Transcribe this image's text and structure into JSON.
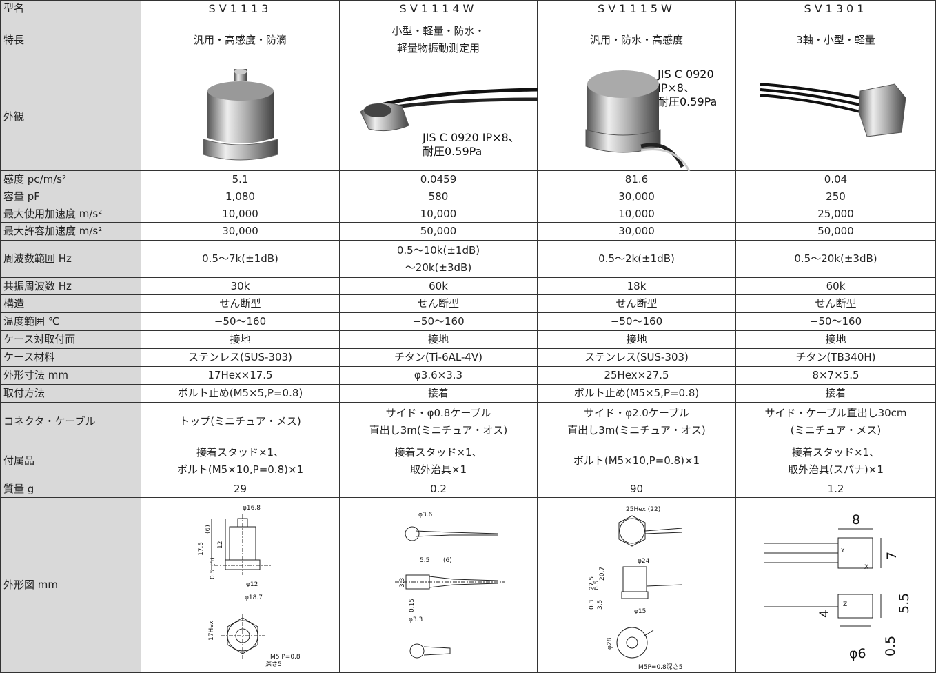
{
  "table": {
    "header": {
      "label": "型名",
      "models": [
        "SV1113",
        "SV1114W",
        "SV1115W",
        "SV1301"
      ]
    },
    "rows": [
      {
        "label": "特長",
        "cells": [
          [
            "汎用・高感度・防滴"
          ],
          [
            "小型・軽量・防水・",
            "軽量物振動測定用"
          ],
          [
            "汎用・防水・高感度"
          ],
          [
            "3軸・小型・軽量"
          ]
        ]
      },
      {
        "label": "外観",
        "notes": [
          [],
          [
            "JIS C 0920 IP×8、",
            "耐圧0.59Pa"
          ],
          [
            "JIS C 0920",
            "IP×8、",
            "耐圧0.59Pa"
          ],
          []
        ]
      },
      {
        "label": "感度 pc/m/s²",
        "cells": [
          [
            "5.1"
          ],
          [
            "0.0459"
          ],
          [
            "81.6"
          ],
          [
            "0.04"
          ]
        ]
      },
      {
        "label": "容量 pF",
        "cells": [
          [
            "1,080"
          ],
          [
            "580"
          ],
          [
            "30,000"
          ],
          [
            "250"
          ]
        ]
      },
      {
        "label": "最大使用加速度 m/s²",
        "cells": [
          [
            "10,000"
          ],
          [
            "10,000"
          ],
          [
            "10,000"
          ],
          [
            "25,000"
          ]
        ]
      },
      {
        "label": "最大許容加速度 m/s²",
        "cells": [
          [
            "30,000"
          ],
          [
            "50,000"
          ],
          [
            "30,000"
          ],
          [
            "50,000"
          ]
        ]
      },
      {
        "label": "周波数範囲 Hz",
        "cells": [
          [
            "0.5～7k(±1dB)"
          ],
          [
            "0.5～10k(±1dB)",
            "～20k(±3dB)"
          ],
          [
            "0.5～2k(±1dB)"
          ],
          [
            "0.5～20k(±3dB)"
          ]
        ]
      },
      {
        "label": "共振周波数 Hz",
        "cells": [
          [
            "30k"
          ],
          [
            "60k"
          ],
          [
            "18k"
          ],
          [
            "60k"
          ]
        ]
      },
      {
        "label": "構造",
        "cells": [
          [
            "せん断型"
          ],
          [
            "せん断型"
          ],
          [
            "せん断型"
          ],
          [
            "せん断型"
          ]
        ]
      },
      {
        "label": "温度範囲 ℃",
        "cells": [
          [
            "−50～160"
          ],
          [
            "−50～160"
          ],
          [
            "−50～160"
          ],
          [
            "−50～160"
          ]
        ]
      },
      {
        "label": "ケース対取付面",
        "cells": [
          [
            "接地"
          ],
          [
            "接地"
          ],
          [
            "接地"
          ],
          [
            "接地"
          ]
        ]
      },
      {
        "label": "ケース材料",
        "cells": [
          [
            "ステンレス(SUS-303)"
          ],
          [
            "チタン(Ti-6AL-4V)"
          ],
          [
            "ステンレス(SUS-303)"
          ],
          [
            "チタン(TB340H)"
          ]
        ]
      },
      {
        "label": "外形寸法 mm",
        "cells": [
          [
            "17Hex×17.5"
          ],
          [
            "φ3.6×3.3"
          ],
          [
            "25Hex×27.5"
          ],
          [
            "8×7×5.5"
          ]
        ]
      },
      {
        "label": "取付方法",
        "cells": [
          [
            "ボルト止め(M5×5,P=0.8)"
          ],
          [
            "接着"
          ],
          [
            "ボルト止め(M5×5,P=0.8)"
          ],
          [
            "接着"
          ]
        ]
      },
      {
        "label": "コネクタ・ケーブル",
        "cells": [
          [
            "トップ(ミニチュア・メス)"
          ],
          [
            "サイド・φ0.8ケーブル",
            "直出し3m(ミニチュア・オス)"
          ],
          [
            "サイド・φ2.0ケーブル",
            "直出し3m(ミニチュア・オス)"
          ],
          [
            "サイド・ケーブル直出し30cm",
            "(ミニチュア・メス)"
          ]
        ]
      },
      {
        "label": "付属品",
        "cells": [
          [
            "接着スタッド×1、",
            "ボルト(M5×10,P=0.8)×1"
          ],
          [
            "接着スタッド×1、",
            "取外治具×1"
          ],
          [
            "ボルト(M5×10,P=0.8)×1"
          ],
          [
            "接着スタッド×1、",
            "取外治具(スパナ)×1"
          ]
        ]
      },
      {
        "label": "質量 g",
        "cells": [
          [
            "29"
          ],
          [
            "0.2"
          ],
          [
            "90"
          ],
          [
            "1.2"
          ]
        ]
      },
      {
        "label": "外形図 mm",
        "dims": [
          [
            "φ16.8",
            "(6)",
            "12",
            "17.5",
            "(5)",
            "0.5",
            "φ12",
            "φ18.7",
            "17Hex",
            "M5 P=0.8",
            "深さ5"
          ],
          [
            "φ3.6",
            "5.5",
            "(6)",
            "3.3",
            "0.15",
            "φ3.3"
          ],
          [
            "25Hex (22)",
            "φ24",
            "27.5",
            "20.7",
            "6.5",
            "0.3",
            "3.5",
            "φ15",
            "φ28",
            "M5P=0.8深さ5"
          ],
          [
            "8",
            "7",
            "Y",
            "X",
            "Z",
            "4",
            "5.5",
            "0.5",
            "φ6"
          ]
        ]
      }
    ]
  }
}
